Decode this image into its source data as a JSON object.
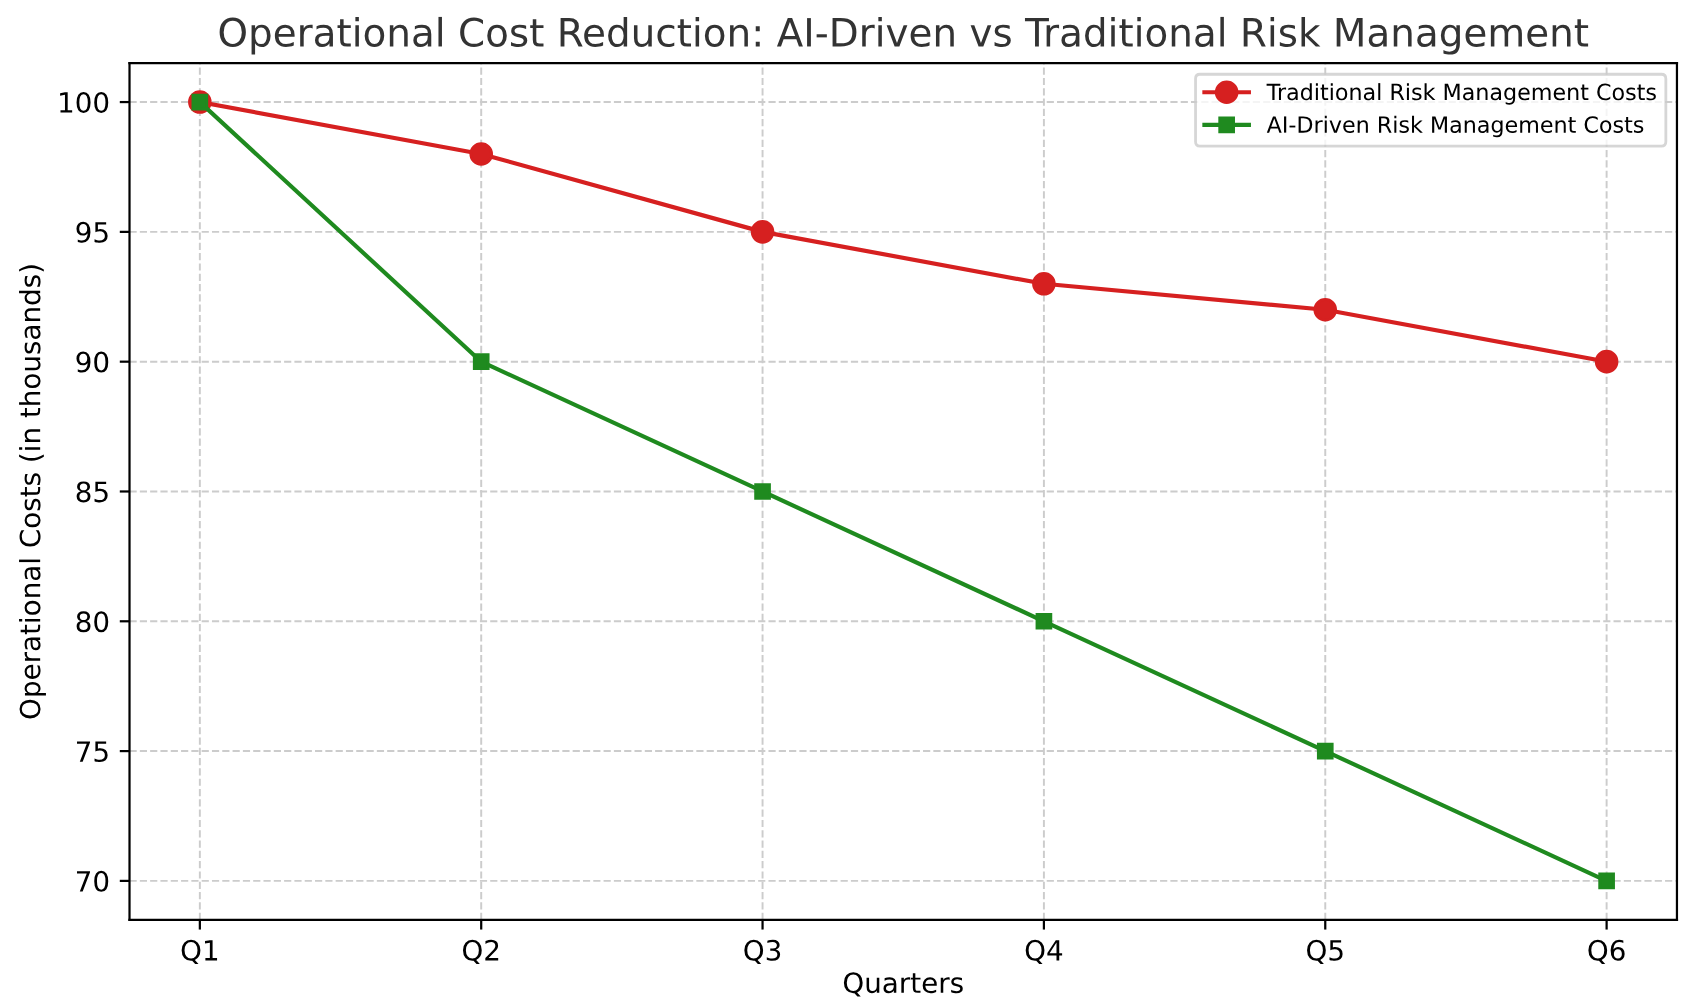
{
  "chart_data": {
    "type": "line",
    "title": "Operational Cost Reduction: AI-Driven vs Traditional Risk Management",
    "xlabel": "Quarters",
    "ylabel": "Operational Costs (in thousands)",
    "categories": [
      "Q1",
      "Q2",
      "Q3",
      "Q4",
      "Q5",
      "Q6"
    ],
    "series": [
      {
        "name": "Traditional Risk Management Costs",
        "color": "#d62020",
        "marker": "circle",
        "values": [
          100,
          98,
          95,
          93,
          92,
          90
        ]
      },
      {
        "name": "AI-Driven Risk Management Costs",
        "color": "#1f8a1f",
        "marker": "square",
        "values": [
          100,
          90,
          85,
          80,
          75,
          70
        ]
      }
    ],
    "ylim": [
      68.5,
      101.5
    ],
    "yticks": [
      70,
      75,
      80,
      85,
      90,
      95,
      100
    ],
    "grid": true,
    "legend": "top right",
    "line_style": "solid"
  }
}
